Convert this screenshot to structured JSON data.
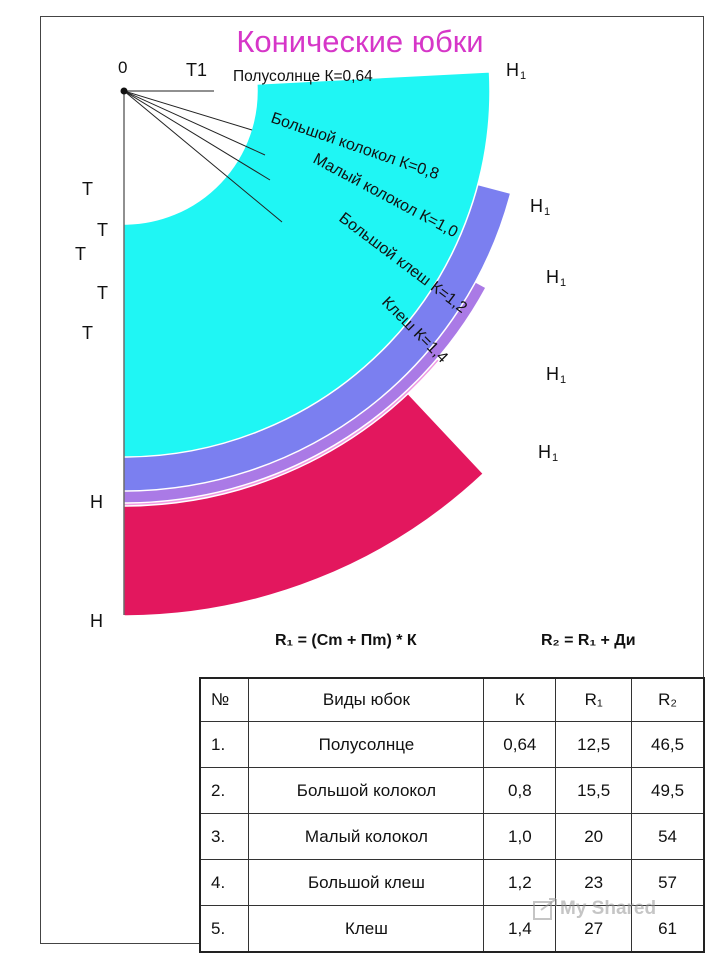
{
  "title": "Конические юбки",
  "colors": {
    "title": "#d636c8",
    "polusolntse": "#1ff6f4",
    "bolshoy_kolokol": "#7b7ff0",
    "maly_kolokol": "#aa7ae6",
    "bolshoy_klesh": "#f09ae4",
    "klesh": "#e3175e"
  },
  "diagram": {
    "origin_label": "0",
    "label_T1": "Т1",
    "label_T": "Т",
    "label_H": "Н",
    "label_H1": "Н",
    "label_H1_sub": "1",
    "skirts": [
      {
        "name": "Полусолнце К=0,64"
      },
      {
        "name": "Большой колокол  К=0,8"
      },
      {
        "name": "Малый колокол  К=1,0"
      },
      {
        "name": "Большой клеш  К=1,2"
      },
      {
        "name": "Клеш  К=1,4"
      }
    ]
  },
  "formulas": {
    "r1": "R₁ = (Cm + Пm) * К",
    "r2": "R₂ = R₁ + Ди"
  },
  "table": {
    "headers": [
      "№",
      "Виды юбок",
      "К",
      "R₁",
      "R₂"
    ],
    "rows": [
      {
        "num": "1.",
        "name": "Полусолнце",
        "k": "0,64",
        "r1": "12,5",
        "r2": "46,5"
      },
      {
        "num": "2.",
        "name": "Большой колокол",
        "k": "0,8",
        "r1": "15,5",
        "r2": "49,5"
      },
      {
        "num": "3.",
        "name": "Малый колокол",
        "k": "1,0",
        "r1": "20",
        "r2": "54"
      },
      {
        "num": "4.",
        "name": "Большой клеш",
        "k": "1,2",
        "r1": "23",
        "r2": "57"
      },
      {
        "num": "5.",
        "name": "Клеш",
        "k": "1,4",
        "r1": "27",
        "r2": "61"
      }
    ]
  },
  "watermark": "My Shared"
}
